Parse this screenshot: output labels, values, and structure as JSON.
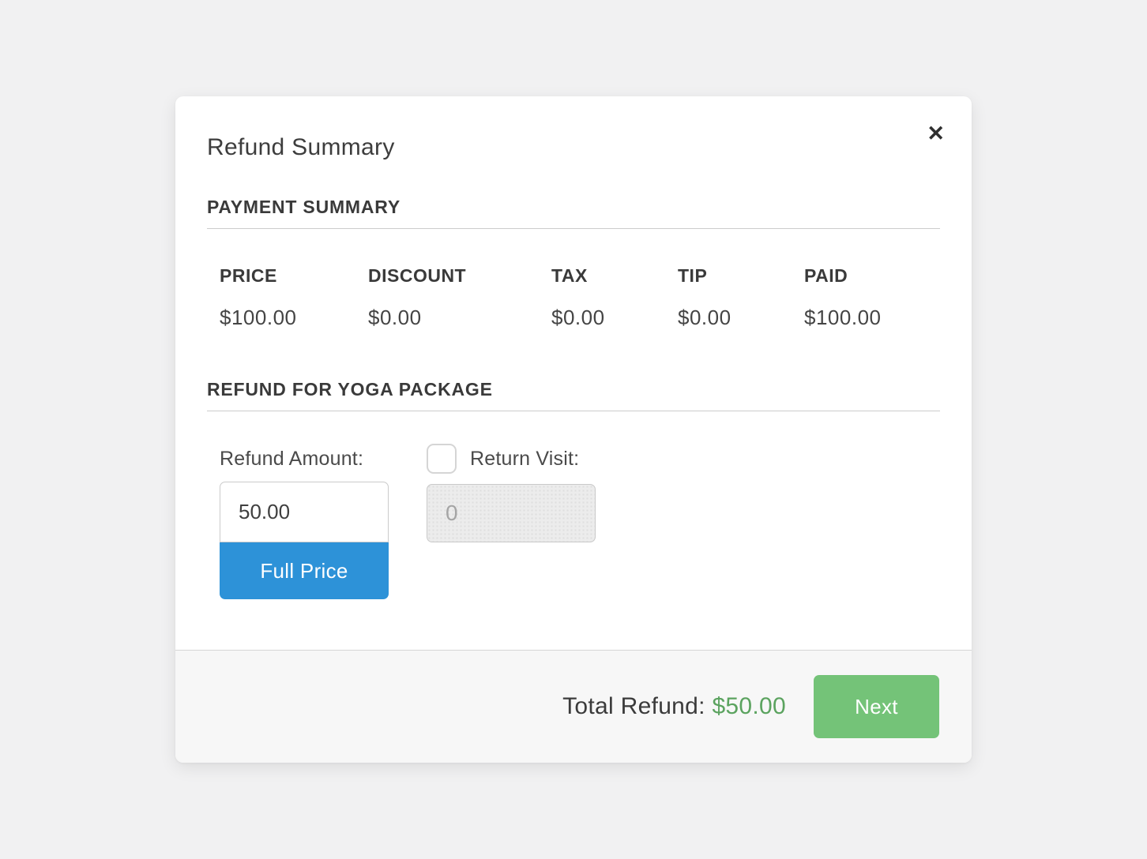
{
  "modal": {
    "title": "Refund Summary",
    "close_glyph": "✕"
  },
  "payment_summary": {
    "heading": "PAYMENT SUMMARY",
    "columns": [
      "PRICE",
      "DISCOUNT",
      "TAX",
      "TIP",
      "PAID"
    ],
    "values": [
      "$100.00",
      "$0.00",
      "$0.00",
      "$0.00",
      "$100.00"
    ]
  },
  "refund_section": {
    "heading": "REFUND FOR YOGA PACKAGE",
    "refund_amount_label": "Refund Amount:",
    "refund_amount_value": "50.00",
    "full_price_label": "Full Price",
    "return_visit_label": "Return Visit:",
    "return_visit_checked": false,
    "return_visit_placeholder": "0"
  },
  "footer": {
    "total_label": "Total Refund:",
    "total_value": "$50.00",
    "next_label": "Next"
  },
  "colors": {
    "accent_blue": "#2d92d8",
    "accent_green": "#74c378",
    "total_green": "#5ba35f"
  }
}
